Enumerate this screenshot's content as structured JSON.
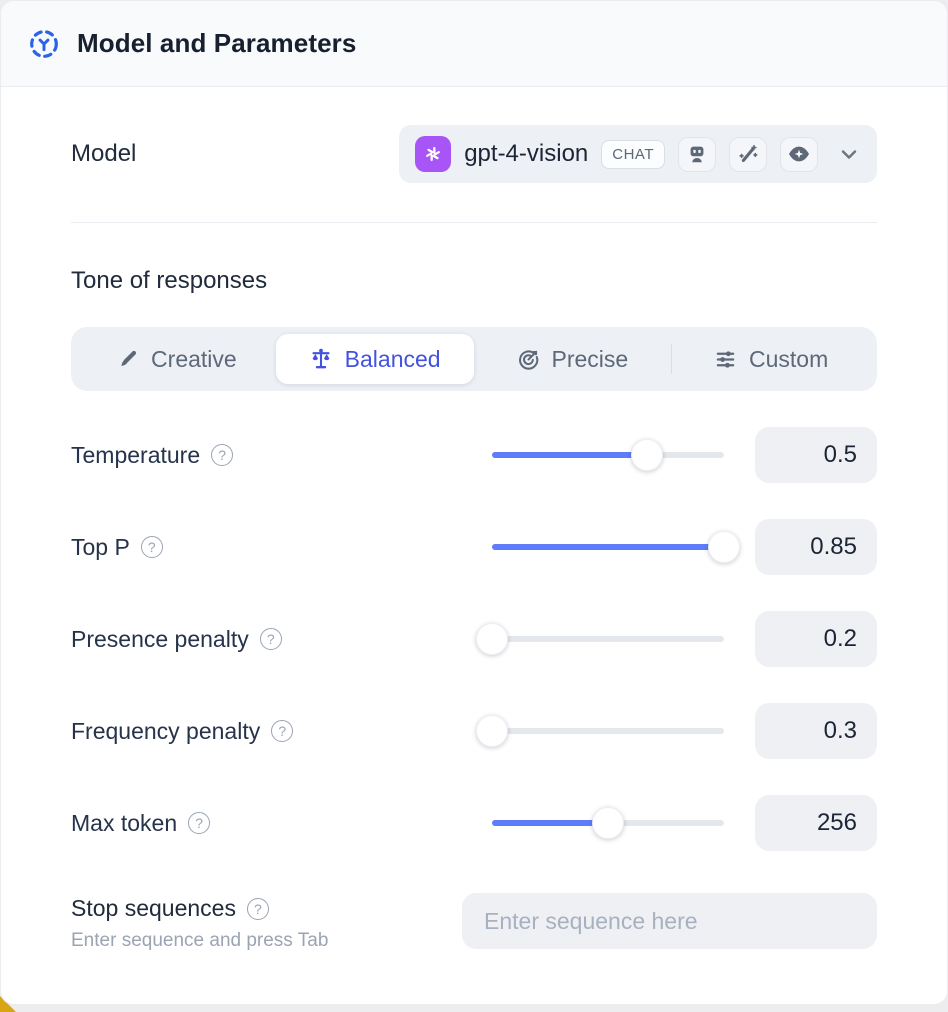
{
  "header": {
    "title": "Model and Parameters",
    "accent_color": "#2b63e8"
  },
  "model": {
    "label": "Model",
    "selected_model": "gpt-4-vision",
    "badge": "CHAT",
    "provider_color": "#a855f7",
    "capability_icons": [
      "robot-icon",
      "magic-wand-icon",
      "vision-eye-icon"
    ]
  },
  "tone": {
    "heading": "Tone of responses",
    "selected_color": "#4353dd",
    "options": [
      {
        "label": "Creative",
        "icon": "paintbrush-icon",
        "selected": false
      },
      {
        "label": "Balanced",
        "icon": "balance-scale-icon",
        "selected": true
      },
      {
        "label": "Precise",
        "icon": "target-dart-icon",
        "selected": false
      },
      {
        "label": "Custom",
        "icon": "sliders-icon",
        "selected": false
      }
    ]
  },
  "parameters": [
    {
      "label": "Temperature",
      "value": "0.5",
      "percent": 67
    },
    {
      "label": "Top P",
      "value": "0.85",
      "percent": 100
    },
    {
      "label": "Presence penalty",
      "value": "0.2",
      "percent": 0
    },
    {
      "label": "Frequency penalty",
      "value": "0.3",
      "percent": 0
    },
    {
      "label": "Max token",
      "value": "256",
      "percent": 50
    }
  ],
  "help_glyph": "?",
  "stop_sequences": {
    "label": "Stop sequences",
    "hint": "Enter sequence and press Tab",
    "placeholder": "Enter sequence here"
  },
  "colors": {
    "slider_fill": "#5f7dfa",
    "slider_track": "#e4e7ec"
  }
}
